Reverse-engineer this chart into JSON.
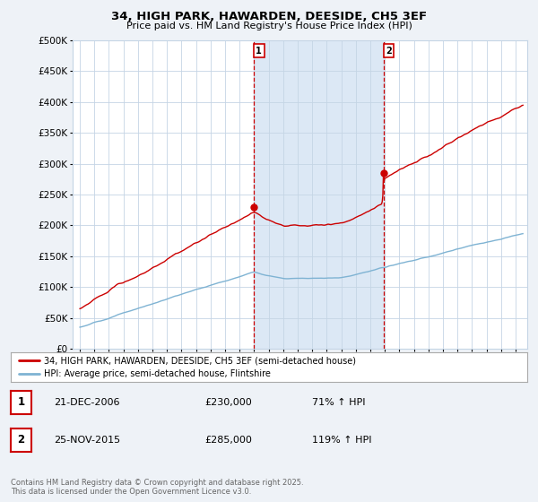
{
  "title": "34, HIGH PARK, HAWARDEN, DEESIDE, CH5 3EF",
  "subtitle": "Price paid vs. HM Land Registry's House Price Index (HPI)",
  "ylim": [
    0,
    500000
  ],
  "yticks": [
    0,
    50000,
    100000,
    150000,
    200000,
    250000,
    300000,
    350000,
    400000,
    450000,
    500000
  ],
  "line_color_property": "#cc0000",
  "line_color_hpi": "#7fb3d3",
  "sale1_year": 2006.97,
  "sale1_price": 230000,
  "sale2_year": 2015.9,
  "sale2_price": 285000,
  "legend_property": "34, HIGH PARK, HAWARDEN, DEESIDE, CH5 3EF (semi-detached house)",
  "legend_hpi": "HPI: Average price, semi-detached house, Flintshire",
  "table_entries": [
    {
      "num": "1",
      "date": "21-DEC-2006",
      "price": "£230,000",
      "hpi": "71% ↑ HPI"
    },
    {
      "num": "2",
      "date": "25-NOV-2015",
      "price": "£285,000",
      "hpi": "119% ↑ HPI"
    }
  ],
  "footnote": "Contains HM Land Registry data © Crown copyright and database right 2025.\nThis data is licensed under the Open Government Licence v3.0.",
  "background_color": "#eef2f7",
  "plot_bg_color": "#ffffff",
  "shade_color": "#dce8f5",
  "grid_color": "#c5d5e5"
}
